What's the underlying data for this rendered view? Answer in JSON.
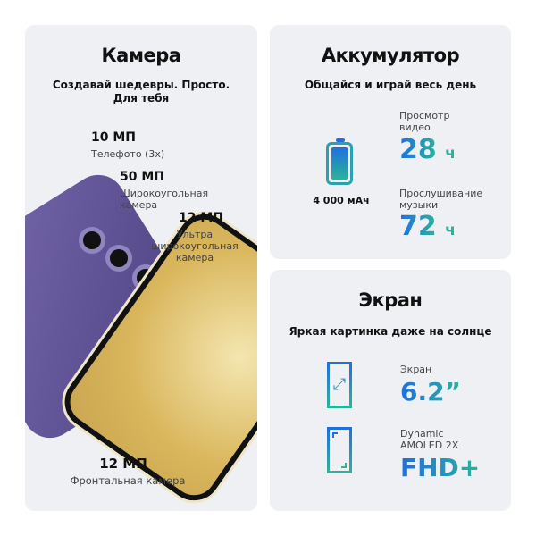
{
  "camera": {
    "title": "Камера",
    "subtitle": "Создавай шедевры. Просто. Для тебя",
    "tele_mp": "10 МП",
    "tele_label": "Телефото (3x)",
    "wide_mp": "50 МП",
    "wide_label": "Широкоугольная камера",
    "ultra_mp": "12 МП",
    "ultra_label": "Ультра широкоугольная камера",
    "front_mp": "12 МП",
    "front_label": "Фронтальная камера"
  },
  "battery": {
    "title": "Аккумулятор",
    "subtitle": "Общайся и играй весь день",
    "capacity": "4 000 мАч",
    "video_label": "Просмотр видео",
    "video_value": "28",
    "video_unit": "ч",
    "music_label": "Прослушивание музыки",
    "music_value": "72",
    "music_unit": "ч"
  },
  "screen": {
    "title": "Экран",
    "subtitle": "Яркая картинка даже на солнце",
    "size_label": "Экран",
    "size_value": "6.2”",
    "type_label": "Dynamic AMOLED 2X",
    "type_value": "FHD+"
  },
  "colors": {
    "accent_blue": "#1f6fe0",
    "accent_teal": "#2bb39a",
    "phone_back": "#5c4f8f",
    "phone_front": "#f1e9c9"
  }
}
